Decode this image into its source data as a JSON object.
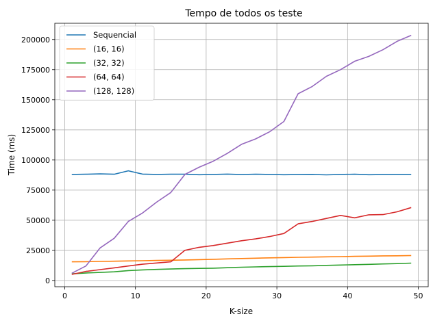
{
  "chart_data": {
    "type": "line",
    "title": "Tempo de todos os teste",
    "xlabel": "K-size",
    "ylabel": "Time (ms)",
    "xlim": [
      -1.4,
      51.4
    ],
    "ylim": [
      -5200,
      213500
    ],
    "xticks": [
      0,
      10,
      20,
      30,
      40,
      50
    ],
    "yticks": [
      0,
      25000,
      50000,
      75000,
      100000,
      125000,
      150000,
      175000,
      200000
    ],
    "grid": true,
    "legend_position": "top-left",
    "x": [
      1,
      3,
      5,
      7,
      9,
      11,
      13,
      15,
      17,
      19,
      21,
      23,
      25,
      27,
      29,
      31,
      33,
      35,
      37,
      39,
      41,
      43,
      45,
      47,
      49
    ],
    "series": [
      {
        "name": "Sequencial",
        "color": "#1f77b4",
        "values": [
          88000,
          88200,
          88500,
          88200,
          91000,
          88300,
          88000,
          88200,
          88200,
          87800,
          88000,
          88300,
          87900,
          88200,
          88000,
          87800,
          87900,
          88000,
          87700,
          88000,
          88200,
          87800,
          87900,
          88000,
          88000
        ]
      },
      {
        "name": "(16, 16)",
        "color": "#ff7f0e",
        "values": [
          15500,
          15600,
          15800,
          16000,
          16200,
          16400,
          16600,
          16800,
          17000,
          17300,
          17600,
          17900,
          18200,
          18500,
          18800,
          19000,
          19200,
          19400,
          19600,
          19800,
          20000,
          20200,
          20400,
          20500,
          20700
        ]
      },
      {
        "name": "(32, 32)",
        "color": "#2ca02c",
        "values": [
          5500,
          6200,
          6700,
          7200,
          8200,
          8800,
          9200,
          9500,
          9800,
          10000,
          10200,
          10600,
          11000,
          11300,
          11500,
          11700,
          12000,
          12200,
          12500,
          12800,
          13100,
          13400,
          13700,
          14000,
          14400
        ]
      },
      {
        "name": "(64, 64)",
        "color": "#d62728",
        "values": [
          5000,
          7500,
          9000,
          10500,
          12000,
          13500,
          14500,
          15500,
          25000,
          27500,
          29000,
          31000,
          33000,
          34500,
          36500,
          39000,
          47000,
          49000,
          51500,
          54000,
          52000,
          54500,
          54700,
          57000,
          60500
        ]
      },
      {
        "name": "(128, 128)",
        "color": "#9467bd",
        "values": [
          6000,
          12000,
          27000,
          35000,
          49000,
          56000,
          65000,
          73000,
          88000,
          94000,
          99000,
          105500,
          113000,
          117500,
          123500,
          132000,
          155000,
          161000,
          169500,
          175000,
          182000,
          186000,
          191500,
          198500,
          203500
        ]
      }
    ]
  }
}
